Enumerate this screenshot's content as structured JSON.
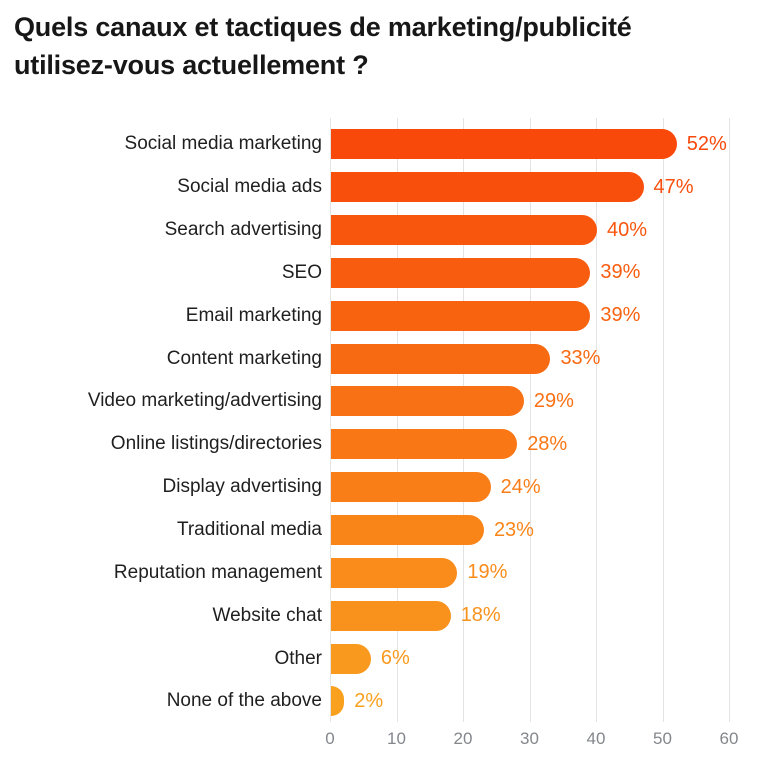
{
  "title": {
    "line1": "Quels canaux et tactiques de marketing/publicité",
    "line2": "utilisez-vous actuellement ?"
  },
  "chart_data": {
    "type": "bar",
    "orientation": "horizontal",
    "title": "Quels canaux et tactiques de marketing/publicité utilisez-vous actuellement ?",
    "categories": [
      "Social media marketing",
      "Social media ads",
      "Search advertising",
      "SEO",
      "Email marketing",
      "Content marketing",
      "Video marketing/advertising",
      "Online listings/directories",
      "Display advertising",
      "Traditional media",
      "Reputation management",
      "Website chat",
      "Other",
      "None of the above"
    ],
    "values": [
      52,
      47,
      40,
      39,
      39,
      33,
      29,
      28,
      24,
      23,
      19,
      18,
      6,
      2
    ],
    "value_labels": [
      "52%",
      "47%",
      "40%",
      "39%",
      "39%",
      "33%",
      "29%",
      "28%",
      "24%",
      "23%",
      "19%",
      "18%",
      "6%",
      "2%"
    ],
    "bar_colors": [
      "#F8480A",
      "#F84F0C",
      "#F8560D",
      "#F85C0F",
      "#F86310",
      "#F86A12",
      "#F87114",
      "#F97715",
      "#F97E17",
      "#F98518",
      "#F98C1A",
      "#F9921C",
      "#F9991D",
      "#F9A01F"
    ],
    "x_ticks": [
      0,
      10,
      20,
      30,
      40,
      50,
      60
    ],
    "xlim": [
      0,
      60
    ],
    "grid": true,
    "gridline_color": "#e3e3e3",
    "axis_label_color": "#83878c",
    "title_color": "#171717",
    "category_label_color": "#1f1f1f",
    "legend": "none"
  }
}
